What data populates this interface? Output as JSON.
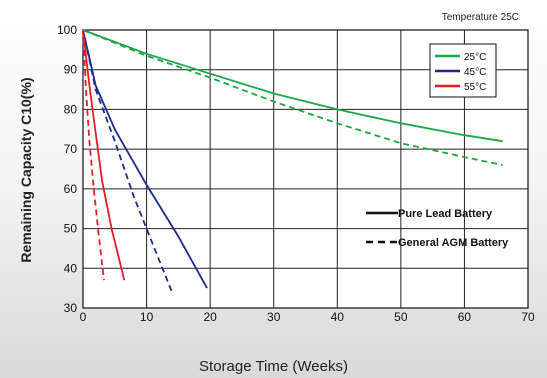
{
  "chart_data": {
    "type": "line",
    "title": "",
    "note": "Temperature 25C",
    "xlabel": "Storage Time (Weeks)",
    "ylabel": "Remaining Capacity C10(%)",
    "xlim": [
      0,
      70
    ],
    "ylim": [
      30,
      100
    ],
    "xticks": [
      0,
      10,
      20,
      30,
      40,
      50,
      60,
      70
    ],
    "yticks": [
      30,
      40,
      50,
      60,
      70,
      80,
      90,
      100
    ],
    "grid": true,
    "legend_temperature": [
      {
        "label": "25°C",
        "color": "#1aa64a"
      },
      {
        "label": "45°C",
        "color": "#1e2a8c"
      },
      {
        "label": "55°C",
        "color": "#e01e2a"
      }
    ],
    "legend_type": [
      {
        "label": "Pure Lead Battery",
        "style": "solid"
      },
      {
        "label": "General AGM Battery",
        "style": "dashed"
      }
    ],
    "series": [
      {
        "temperature": "25°C",
        "battery": "Pure Lead Battery",
        "color": "#1aa64a",
        "dashed": false,
        "x": [
          0,
          10,
          20,
          30,
          40,
          50,
          60,
          66
        ],
        "y": [
          100,
          94,
          89,
          84,
          80,
          76.5,
          73.5,
          72
        ]
      },
      {
        "temperature": "25°C",
        "battery": "General AGM Battery",
        "color": "#1aa64a",
        "dashed": true,
        "x": [
          0,
          10,
          20,
          30,
          40,
          50,
          60,
          66
        ],
        "y": [
          100,
          93.5,
          88,
          82,
          76.5,
          71.5,
          68,
          66
        ]
      },
      {
        "temperature": "45°C",
        "battery": "Pure Lead Battery",
        "color": "#1e2a8c",
        "dashed": false,
        "x": [
          0,
          2,
          5,
          10,
          15,
          19.5
        ],
        "y": [
          100,
          86,
          75,
          61,
          48,
          35
        ]
      },
      {
        "temperature": "45°C",
        "battery": "General AGM Battery",
        "color": "#1e2a8c",
        "dashed": true,
        "x": [
          0,
          2,
          5,
          8,
          11,
          14
        ],
        "y": [
          100,
          85,
          72,
          58,
          46,
          34
        ]
      },
      {
        "temperature": "55°C",
        "battery": "Pure Lead Battery",
        "color": "#e01e2a",
        "dashed": false,
        "x": [
          0,
          1,
          2,
          3,
          4.5,
          6.5
        ],
        "y": [
          100,
          86,
          74,
          62,
          50,
          37
        ]
      },
      {
        "temperature": "55°C",
        "battery": "General AGM Battery",
        "color": "#e01e2a",
        "dashed": true,
        "x": [
          0,
          0.5,
          1,
          1.7,
          2.5,
          3.3
        ],
        "y": [
          100,
          84,
          72,
          60,
          48,
          37
        ]
      }
    ]
  }
}
